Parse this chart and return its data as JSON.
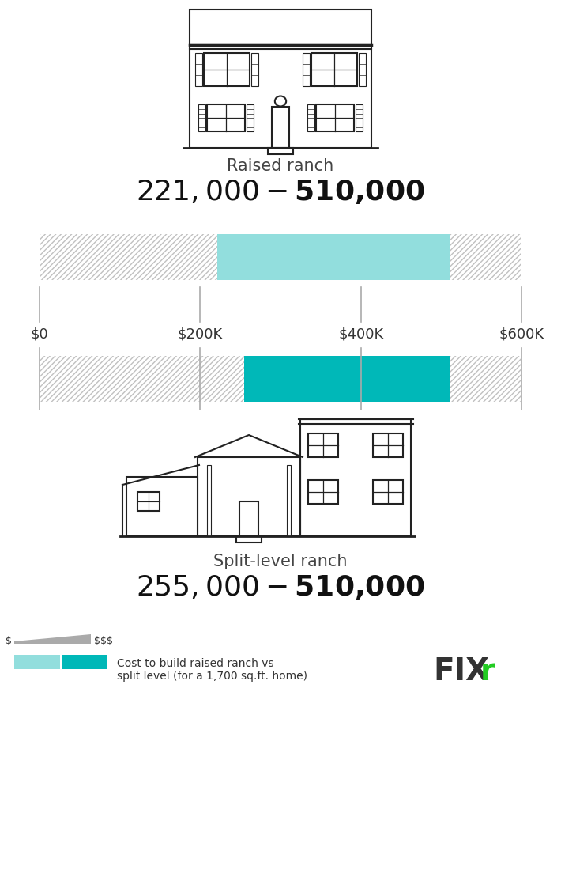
{
  "bg_color": "#ffffff",
  "raised_ranch_label": "Raised ranch",
  "raised_ranch_price": "$221,000 - $510,000",
  "raised_ranch_min": 221000,
  "raised_ranch_max": 510000,
  "split_level_label": "Split-level ranch",
  "split_level_price": "$255,000 - $510,000",
  "split_level_min": 255000,
  "split_level_max": 510000,
  "axis_min": 0,
  "axis_max": 600000,
  "tick_labels": [
    "$0",
    "$200K",
    "$400K",
    "$600K"
  ],
  "tick_values": [
    0,
    200000,
    400000,
    600000
  ],
  "bar_color_raised": "#92dedd",
  "bar_color_split": "#00b8b8",
  "hatch_color": "#cccccc",
  "legend_text_line1": "Cost to build raised ranch vs",
  "legend_text_line2": "split level (for a 1,700 sq.ft. home)",
  "fixr_color_fix": "#333333",
  "fixr_color_r": "#22cc22",
  "price_fontsize": 26,
  "label_fontsize": 15,
  "tick_fontsize": 13
}
